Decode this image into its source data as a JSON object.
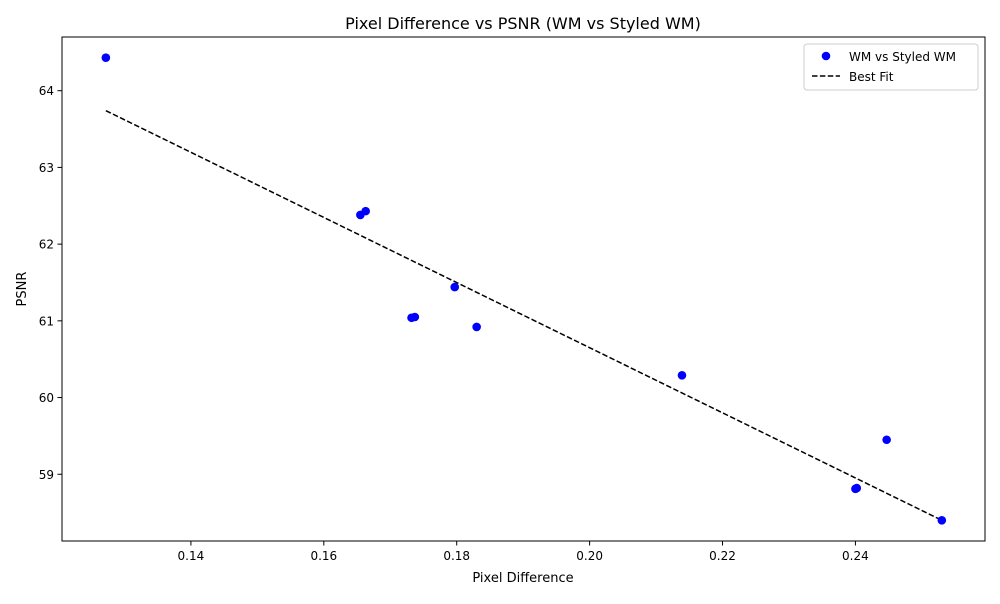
{
  "chart_data": {
    "type": "scatter",
    "title": "Pixel Difference vs PSNR (WM vs Styled WM)",
    "xlabel": "Pixel Difference",
    "ylabel": "PSNR",
    "xlim": [
      0.1206,
      0.2595
    ],
    "ylim": [
      58.13,
      64.7
    ],
    "x_ticks": [
      0.14,
      0.16,
      0.18,
      0.2,
      0.22,
      0.24
    ],
    "x_tick_labels": [
      "0.14",
      "0.16",
      "0.18",
      "0.20",
      "0.22",
      "0.24"
    ],
    "y_ticks": [
      59,
      60,
      61,
      62,
      63,
      64
    ],
    "y_tick_labels": [
      "59",
      "60",
      "61",
      "62",
      "63",
      "64"
    ],
    "grid": false,
    "legend_position": "top-right",
    "series": [
      {
        "name": "WM vs Styled WM",
        "kind": "scatter",
        "color": "#0000ff",
        "points": [
          {
            "x": 0.1272,
            "y": 64.43
          },
          {
            "x": 0.1655,
            "y": 62.38
          },
          {
            "x": 0.1663,
            "y": 62.43
          },
          {
            "x": 0.1732,
            "y": 61.04
          },
          {
            "x": 0.1737,
            "y": 61.05
          },
          {
            "x": 0.1797,
            "y": 61.44
          },
          {
            "x": 0.183,
            "y": 60.92
          },
          {
            "x": 0.2139,
            "y": 60.29
          },
          {
            "x": 0.24,
            "y": 58.81
          },
          {
            "x": 0.2402,
            "y": 58.82
          },
          {
            "x": 0.2447,
            "y": 59.45
          },
          {
            "x": 0.253,
            "y": 58.4
          }
        ]
      },
      {
        "name": "Best Fit",
        "kind": "line",
        "color": "#000000",
        "dashed": true,
        "points": [
          {
            "x": 0.1272,
            "y": 63.74
          },
          {
            "x": 0.253,
            "y": 58.4
          }
        ]
      }
    ]
  }
}
